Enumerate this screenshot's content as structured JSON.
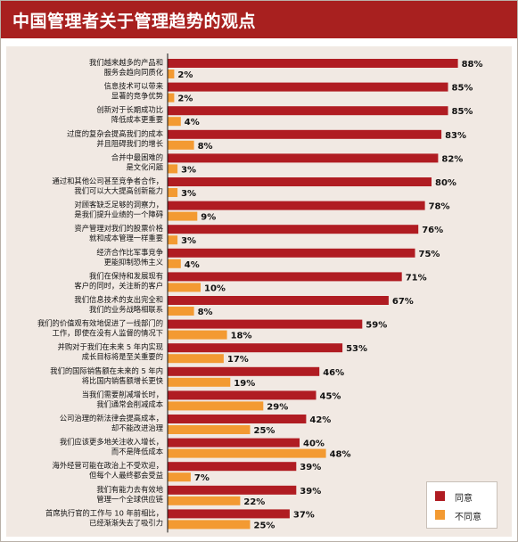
{
  "title": "中国管理者关于管理趋势的观点",
  "colors": {
    "agree": "#b01c22",
    "disagree": "#f39a32"
  },
  "legend": {
    "agree_label": "同意",
    "disagree_label": "不同意"
  },
  "chart_data": {
    "type": "bar",
    "orientation": "horizontal",
    "title": "中国管理者关于管理趋势的观点",
    "xlim": [
      0,
      100
    ],
    "grid": false,
    "legend_position": "bottom-right",
    "categories": [
      [
        "我们越来越多的产品和",
        "服务会趋向同质化"
      ],
      [
        "信息技术可以带来",
        "显著的竞争优势"
      ],
      [
        "创新对于长期成功比",
        "降低成本更重要"
      ],
      [
        "过度的复杂会提高我们的成本",
        "并且阻碍我们的增长"
      ],
      [
        "合并中最困难的",
        "是文化问题"
      ],
      [
        "通过和其他公司甚至竞争者合作，",
        "我们可以大大提高创新能力"
      ],
      [
        "对顾客缺乏足够的洞察力，",
        "是我们提升业绩的一个障碍"
      ],
      [
        "资产管理对我们的股票价格",
        "就和成本管理一样重要"
      ],
      [
        "经济合作比军事竞争",
        "更能抑制恐怖主义"
      ],
      [
        "我们在保持和发展现有",
        "客户的同时，关注新的客户"
      ],
      [
        "我们信息技术的支出完全和",
        "我们的业务战略相联系"
      ],
      [
        "我们的价值观有效地促进了一线部门的",
        "工作，即使在没有人监督的情况下"
      ],
      [
        "并购对于我们在未来 5 年内实现",
        "成长目标将是至关重要的"
      ],
      [
        "我们的国际销售额在未来的 5 年内",
        "将比国内销售额增长更快"
      ],
      [
        "当我们需要削减增长时，",
        "我们通常会削减成本"
      ],
      [
        "公司治理的新法律会提高成本，",
        "却不能改进治理"
      ],
      [
        "我们应该更多地关注收入增长，",
        "而不是降低成本"
      ],
      [
        "海外经营可能在政治上不受欢迎，",
        "但每个人最终都会受益"
      ],
      [
        "我们有能力去有效地",
        "管理一个全球供应链"
      ],
      [
        "首席执行官的工作与 10 年前相比，",
        "已经渐渐失去了吸引力"
      ]
    ],
    "series": [
      {
        "name": "同意",
        "values": [
          88,
          85,
          85,
          83,
          82,
          80,
          78,
          76,
          75,
          71,
          67,
          59,
          53,
          46,
          45,
          42,
          40,
          39,
          39,
          37
        ]
      },
      {
        "name": "不同意",
        "values": [
          2,
          2,
          4,
          8,
          3,
          3,
          9,
          3,
          4,
          10,
          8,
          18,
          17,
          19,
          29,
          25,
          48,
          7,
          22,
          25
        ]
      }
    ],
    "value_labels": {
      "agree": [
        "88%",
        "85%",
        "85%",
        "83%",
        "82%",
        "80%",
        "78%",
        "76%",
        "75%",
        "71%",
        "67%",
        "59%",
        "53%",
        "46%",
        "45%",
        "42%",
        "40%",
        "39%",
        "39%",
        "37%"
      ],
      "disagree": [
        "2%",
        "2%",
        "4%",
        "8%",
        "3%",
        "3%",
        "9%",
        "3%",
        "4%",
        "10%",
        "8%",
        "18%",
        "17%",
        "19%",
        "29%",
        "25%",
        "48%",
        "7%",
        "22%",
        "25%"
      ]
    }
  }
}
